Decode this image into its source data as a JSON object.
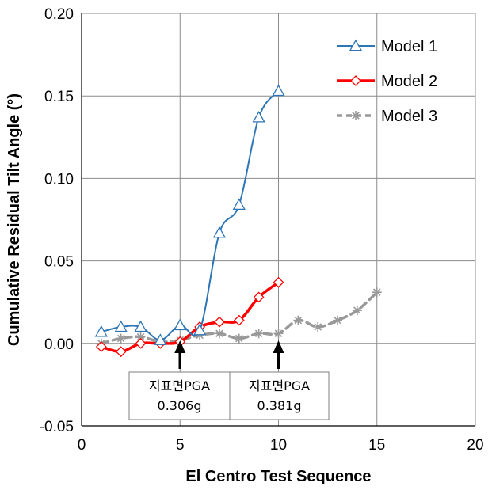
{
  "chart_data": {
    "type": "line",
    "xlabel": "El Centro Test Sequence",
    "ylabel": "Cumulative Residual Tilt Angle (°)",
    "xlim": [
      0,
      20
    ],
    "ylim": [
      -0.05,
      0.2
    ],
    "xticks": [
      0,
      5,
      10,
      15,
      20
    ],
    "yticks": [
      -0.05,
      0.0,
      0.05,
      0.1,
      0.15,
      0.2
    ],
    "xtick_labels": [
      "0",
      "5",
      "10",
      "15",
      "20"
    ],
    "ytick_labels": [
      "-0.05",
      "0.00",
      "0.05",
      "0.10",
      "0.15",
      "0.20"
    ],
    "grid": "vertical and horizontal gridlines",
    "legend_position": "top-right",
    "series": [
      {
        "name": "Model 1",
        "color": "#2e75b6",
        "marker": "triangle-open",
        "line_style": "solid",
        "x": [
          1,
          2,
          3,
          4,
          5,
          6,
          7,
          8,
          9,
          10
        ],
        "y": [
          0.007,
          0.01,
          0.01,
          0.002,
          0.011,
          0.008,
          0.067,
          0.084,
          0.137,
          0.153
        ]
      },
      {
        "name": "Model 2",
        "color": "#ff0000",
        "marker": "diamond-open",
        "line_style": "solid",
        "x": [
          1,
          2,
          3,
          4,
          5,
          6,
          7,
          8,
          9,
          10
        ],
        "y": [
          -0.002,
          -0.005,
          0.0,
          0.0,
          0.001,
          0.01,
          0.013,
          0.014,
          0.028,
          0.037
        ]
      },
      {
        "name": "Model 3",
        "color": "#999999",
        "marker": "asterisk",
        "line_style": "dashed",
        "x": [
          1,
          2,
          3,
          4,
          5,
          6,
          7,
          8,
          9,
          10,
          11,
          12,
          13,
          14,
          15
        ],
        "y": [
          0.0,
          0.003,
          0.004,
          0.001,
          0.002,
          0.005,
          0.006,
          0.003,
          0.006,
          0.006,
          0.014,
          0.01,
          0.014,
          0.02,
          0.031
        ]
      }
    ],
    "annotations": [
      {
        "x": 5,
        "arrow": "up",
        "line1": "지표면PGA",
        "line2": "0.306g"
      },
      {
        "x": 10,
        "arrow": "up",
        "line1": "지표면PGA",
        "line2": "0.381g"
      }
    ]
  }
}
